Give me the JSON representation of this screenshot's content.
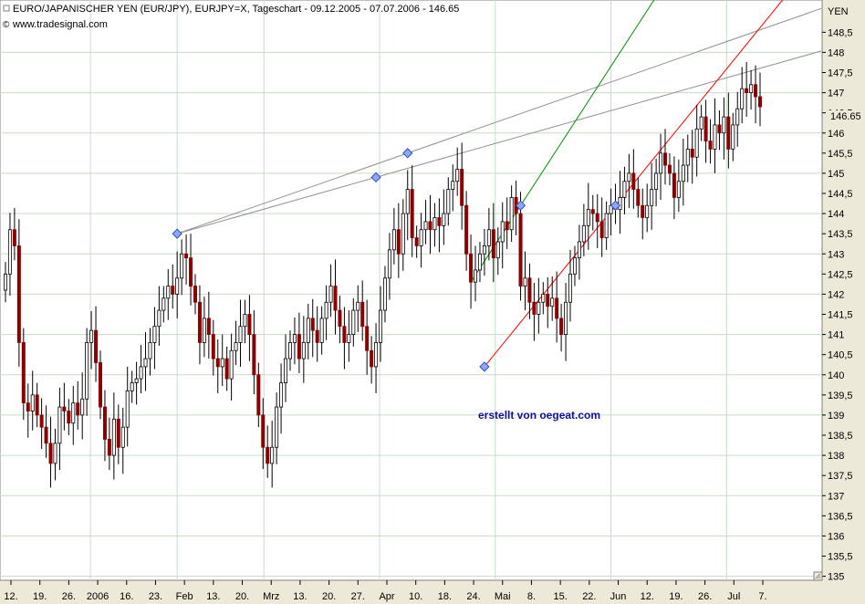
{
  "header": {
    "title": "EURO/JAPANISCHER YEN (EUR/JPY), EURJPY=X, Tageschart - 09.12.2005 - 07.07.2006 - 146.65",
    "source": "www.tradesignal.com"
  },
  "watermark": "erstellt von oegeat.com",
  "colors": {
    "background": "#ffffff",
    "frame": "#ece9d8",
    "grid": "#c8dcc8",
    "candle_up": "#ffffff",
    "candle_down": "#8b0000",
    "candle_outline": "#000000",
    "trend_upper": "#909090",
    "trend_green": "#009000",
    "trend_red": "#ff0000",
    "marker": "#8ea6ff",
    "watermark": "#1010a0"
  },
  "chart_data": {
    "type": "candlestick",
    "unit_label": "YEN",
    "last_price": 146.65,
    "y_range": [
      134.9,
      149.3
    ],
    "y_ticks": [
      "148,5",
      "148",
      "147,5",
      "147",
      "146,5",
      "146",
      "145,5",
      "145",
      "144,5",
      "144",
      "143,5",
      "143",
      "142,5",
      "142",
      "141,5",
      "141",
      "140,5",
      "140",
      "139,5",
      "139",
      "138,5",
      "138",
      "137,5",
      "137",
      "136,5",
      "136",
      "135,5",
      "135"
    ],
    "x_labels": [
      "12.",
      "19.",
      "26.",
      "2006",
      "16.",
      "23.",
      "Feb",
      "13.",
      "20.",
      "Mrz",
      "13.",
      "20.",
      "27.",
      "Apr",
      "10.",
      "18.",
      "24.",
      "Mai",
      "8.",
      "15.",
      "22.",
      "Jun",
      "12.",
      "19.",
      "26.",
      "Jul",
      "7."
    ],
    "vertical_grid_after_labels": [
      "2006",
      "Feb",
      "Mrz",
      "Apr",
      "Mai",
      "Jun",
      "Jul"
    ],
    "closes": [
      142.5,
      143.6,
      143.2,
      140.8,
      139.3,
      139.1,
      139.5,
      139.0,
      138.7,
      138.3,
      137.8,
      138.3,
      139.2,
      139.1,
      138.8,
      139.3,
      139.0,
      139.4,
      140.8,
      141.1,
      140.3,
      139.2,
      138.4,
      138.0,
      138.9,
      138.2,
      138.7,
      139.6,
      139.8,
      139.9,
      140.2,
      140.4,
      140.8,
      141.2,
      141.6,
      141.9,
      142.2,
      142.0,
      142.4,
      143.0,
      142.9,
      142.2,
      141.8,
      140.8,
      141.4,
      141.0,
      140.4,
      140.2,
      140.4,
      139.9,
      140.6,
      140.8,
      141.2,
      141.5,
      141.0,
      140.0,
      139.0,
      138.2,
      137.8,
      138.2,
      139.2,
      139.8,
      140.4,
      140.8,
      141.0,
      140.4,
      140.8,
      141.4,
      141.1,
      140.8,
      141.4,
      141.8,
      142.2,
      141.6,
      141.2,
      140.8,
      141.0,
      141.6,
      141.8,
      141.2,
      140.6,
      140.2,
      140.8,
      141.6,
      142.4,
      143.1,
      143.6,
      143.0,
      144.0,
      144.6,
      143.4,
      143.2,
      143.6,
      143.8,
      143.6,
      143.9,
      143.7,
      144.0,
      144.6,
      144.8,
      145.1,
      144.2,
      143.0,
      142.3,
      142.6,
      143.0,
      143.2,
      143.6,
      142.9,
      143.3,
      143.8,
      143.6,
      144.4,
      144.0,
      142.2,
      142.4,
      141.8,
      141.5,
      141.8,
      142.0,
      141.7,
      141.9,
      141.4,
      141.0,
      141.8,
      142.5,
      142.9,
      143.3,
      143.7,
      144.1,
      144.0,
      143.8,
      143.4,
      144.0,
      144.2,
      144.1,
      144.4,
      144.8,
      145.0,
      144.6,
      144.2,
      143.9,
      144.2,
      144.6,
      145.0,
      145.5,
      145.2,
      145.0,
      144.4,
      144.8,
      145.2,
      145.6,
      145.4,
      146.1,
      146.4,
      145.8,
      145.6,
      146.2,
      146.0,
      146.4,
      145.6,
      146.2,
      146.6,
      147.1,
      147.0,
      147.2,
      146.9,
      146.65
    ]
  }
}
